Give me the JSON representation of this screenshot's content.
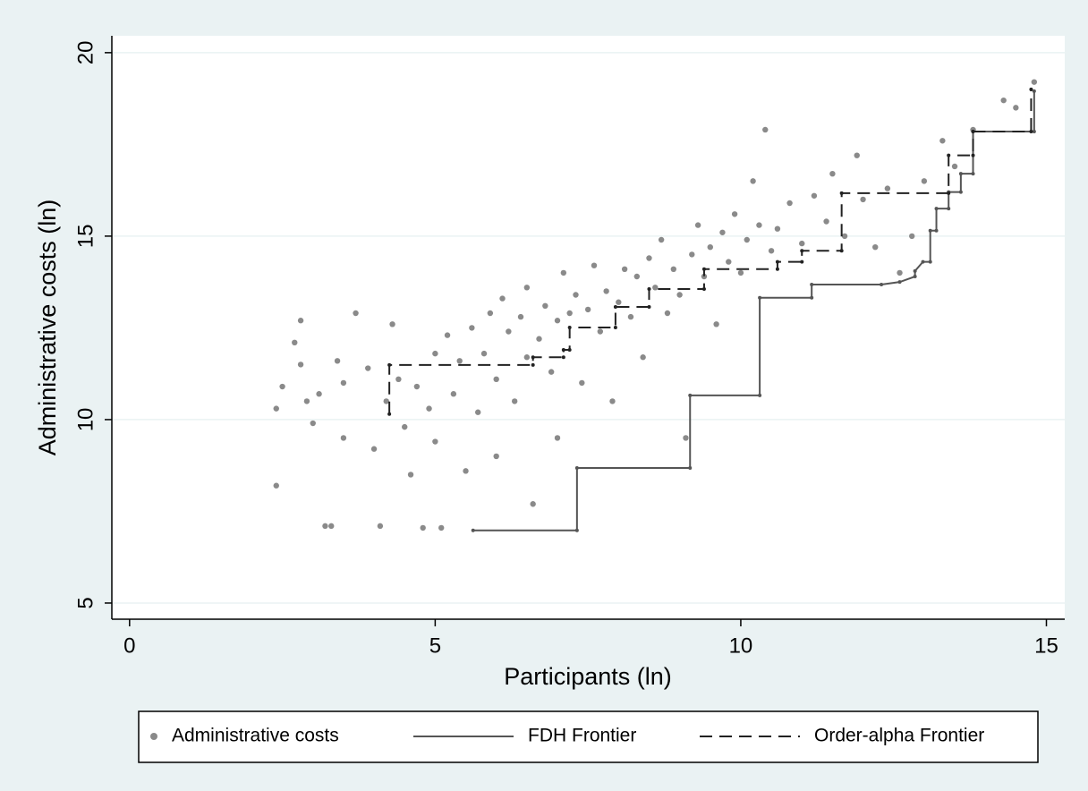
{
  "chart_data": {
    "type": "scatter",
    "x_label": "Participants (ln)",
    "y_label": "Administrative costs (ln)",
    "xlim": [
      -0.29,
      15.3
    ],
    "xticks": [
      0,
      5,
      10,
      15
    ],
    "ylim": [
      4.56,
      20.46
    ],
    "yticks": [
      5,
      10,
      15,
      20
    ],
    "grid": true,
    "legend": "bottom",
    "series": [
      {
        "name": "Administrative costs",
        "type": "scatter",
        "color": "#8a8a8a",
        "x": [
          2.4,
          2.4,
          2.5,
          2.7,
          2.8,
          2.8,
          2.9,
          3.0,
          3.1,
          3.2,
          3.3,
          3.4,
          3.5,
          3.5,
          3.7,
          3.9,
          4.0,
          4.1,
          4.2,
          4.3,
          4.4,
          4.5,
          4.6,
          4.7,
          4.8,
          4.9,
          5.0,
          5.0,
          5.1,
          5.2,
          5.3,
          5.4,
          5.5,
          5.6,
          5.7,
          5.8,
          5.9,
          6.0,
          6.0,
          6.1,
          6.2,
          6.3,
          6.4,
          6.5,
          6.5,
          6.6,
          6.7,
          6.8,
          6.9,
          7.0,
          7.0,
          7.1,
          7.2,
          7.3,
          7.4,
          7.5,
          7.6,
          7.7,
          7.8,
          7.9,
          8.0,
          8.1,
          8.2,
          8.3,
          8.4,
          8.5,
          8.6,
          8.7,
          8.8,
          8.9,
          9.0,
          9.1,
          9.2,
          9.3,
          9.4,
          9.5,
          9.6,
          9.7,
          9.8,
          9.9,
          10.0,
          10.1,
          10.2,
          10.3,
          10.4,
          10.5,
          10.6,
          10.8,
          11.0,
          11.2,
          11.4,
          11.5,
          11.7,
          11.9,
          12.0,
          12.2,
          12.4,
          12.6,
          12.8,
          13.0,
          13.3,
          13.5,
          13.8,
          14.3,
          14.5,
          14.8
        ],
        "y": [
          10.3,
          8.2,
          10.9,
          12.1,
          12.7,
          11.5,
          10.5,
          9.9,
          10.7,
          7.1,
          7.1,
          11.6,
          9.5,
          11.0,
          12.9,
          11.4,
          9.2,
          7.1,
          10.5,
          12.6,
          11.1,
          9.8,
          8.5,
          10.9,
          7.05,
          10.3,
          11.8,
          9.4,
          7.05,
          12.3,
          10.7,
          11.6,
          8.6,
          12.5,
          10.2,
          11.8,
          12.9,
          11.1,
          9.0,
          13.3,
          12.4,
          10.5,
          12.8,
          13.6,
          11.7,
          7.7,
          12.2,
          13.1,
          11.3,
          12.7,
          9.5,
          14.0,
          12.9,
          13.4,
          11.0,
          13.0,
          14.2,
          12.4,
          13.5,
          10.5,
          13.2,
          14.1,
          12.8,
          13.9,
          11.7,
          14.4,
          13.6,
          14.9,
          12.9,
          14.1,
          13.4,
          9.5,
          14.5,
          15.3,
          13.9,
          14.7,
          12.6,
          15.1,
          14.3,
          15.6,
          14.0,
          14.9,
          16.5,
          15.3,
          17.9,
          14.6,
          15.2,
          15.9,
          14.8,
          16.1,
          15.4,
          16.7,
          15.0,
          17.2,
          16.0,
          14.7,
          16.3,
          14.0,
          15.0,
          16.5,
          17.6,
          16.9,
          17.9,
          18.7,
          18.5,
          19.2
        ]
      },
      {
        "name": "FDH Frontier",
        "type": "line",
        "color": "#555555",
        "dash": "solid",
        "x": [
          5.62,
          7.32,
          7.32,
          9.17,
          9.17,
          10.31,
          10.31,
          11.16,
          11.16,
          12.3,
          12.6,
          12.85,
          12.85,
          12.98,
          13.1,
          13.1,
          13.2,
          13.2,
          13.4,
          13.4,
          13.6,
          13.6,
          13.8,
          13.8,
          14.8,
          14.8
        ],
        "y": [
          6.98,
          6.98,
          8.68,
          8.68,
          10.66,
          10.66,
          13.32,
          13.32,
          13.68,
          13.68,
          13.75,
          13.9,
          14.05,
          14.3,
          14.3,
          15.15,
          15.15,
          15.75,
          15.75,
          16.2,
          16.2,
          16.7,
          16.7,
          17.85,
          17.85,
          18.95
        ]
      },
      {
        "name": "Order-alpha Frontier",
        "type": "line",
        "color": "#222222",
        "dash": "dashed",
        "x": [
          4.25,
          4.25,
          6.6,
          6.6,
          7.1,
          7.1,
          7.2,
          7.2,
          7.95,
          7.95,
          8.5,
          8.5,
          9.4,
          9.4,
          10.6,
          10.6,
          11.0,
          11.0,
          11.65,
          11.65,
          13.4,
          13.4,
          13.8,
          13.8,
          14.75,
          14.75
        ],
        "y": [
          10.15,
          11.49,
          11.49,
          11.7,
          11.7,
          11.9,
          11.9,
          12.51,
          12.51,
          13.07,
          13.07,
          13.56,
          13.56,
          14.1,
          14.1,
          14.3,
          14.3,
          14.6,
          14.6,
          16.17,
          16.17,
          17.2,
          17.2,
          17.85,
          17.85,
          19.0
        ]
      }
    ]
  }
}
